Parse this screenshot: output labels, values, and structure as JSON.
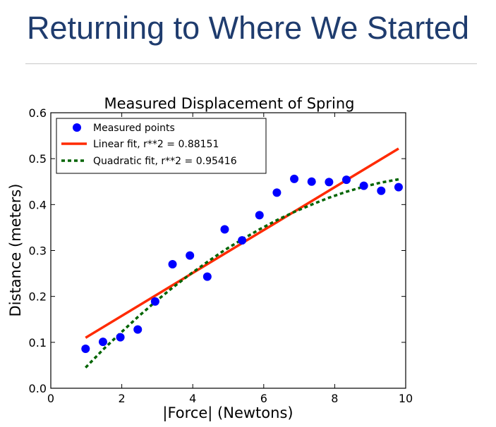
{
  "slide": {
    "title": "Returning to Where We Started"
  },
  "chart_data": {
    "type": "scatter",
    "title": "Measured Displacement of Spring",
    "xlabel": "|Force| (Newtons)",
    "ylabel": "Distance (meters)",
    "xlim": [
      0,
      10
    ],
    "ylim": [
      0,
      0.6
    ],
    "xticks": [
      "0",
      "2",
      "4",
      "6",
      "8",
      "10"
    ],
    "yticks": [
      "0.0",
      "0.1",
      "0.2",
      "0.3",
      "0.4",
      "0.5",
      "0.6"
    ],
    "xtick_values": [
      0,
      2,
      4,
      6,
      8,
      10
    ],
    "ytick_values": [
      0,
      0.1,
      0.2,
      0.3,
      0.4,
      0.5,
      0.6
    ],
    "grid": false,
    "legend_position": "top-left",
    "series": [
      {
        "name": "Measured points",
        "kind": "points",
        "color": "#0000ff",
        "x": [
          0.98,
          1.47,
          1.96,
          2.45,
          2.94,
          3.43,
          3.92,
          4.41,
          4.9,
          5.39,
          5.88,
          6.37,
          6.86,
          7.35,
          7.84,
          8.33,
          8.82,
          9.31,
          9.8
        ],
        "y": [
          0.086,
          0.101,
          0.111,
          0.128,
          0.189,
          0.27,
          0.289,
          0.243,
          0.346,
          0.322,
          0.377,
          0.426,
          0.456,
          0.45,
          0.449,
          0.454,
          0.441,
          0.43,
          0.438
        ]
      },
      {
        "name": "Linear fit, r**2 = 0.88151",
        "kind": "line",
        "color": "#ff2a00",
        "x": [
          0.98,
          9.8
        ],
        "y": [
          0.11,
          0.522
        ]
      },
      {
        "name": "Quadratic fit, r**2 = 0.95416",
        "kind": "dashed-line",
        "color": "#006400",
        "x": [
          0.98,
          1.47,
          1.96,
          2.45,
          2.94,
          3.43,
          3.92,
          4.41,
          4.9,
          5.39,
          5.88,
          6.37,
          6.86,
          7.35,
          7.84,
          8.33,
          8.82,
          9.31,
          9.8
        ],
        "y": [
          0.045,
          0.084,
          0.12,
          0.155,
          0.188,
          0.219,
          0.248,
          0.275,
          0.301,
          0.324,
          0.346,
          0.366,
          0.384,
          0.4,
          0.415,
          0.428,
          0.439,
          0.448,
          0.455
        ]
      }
    ]
  }
}
